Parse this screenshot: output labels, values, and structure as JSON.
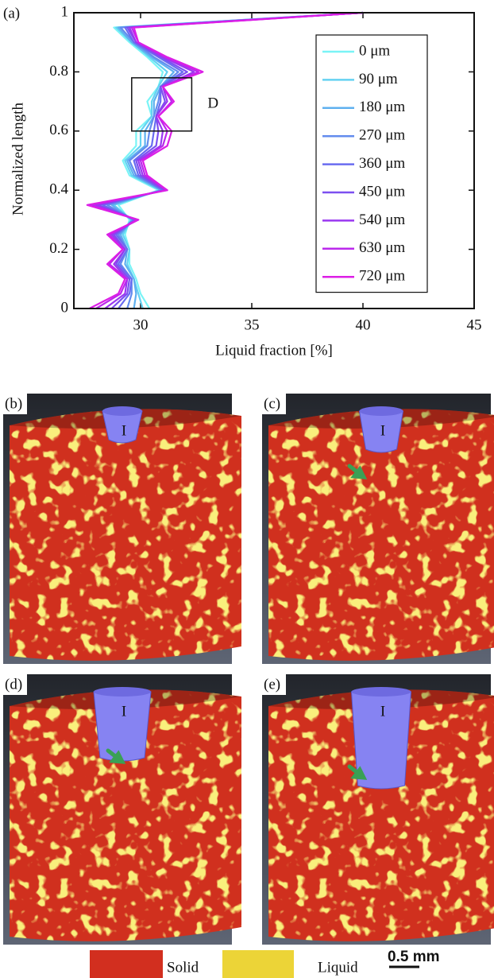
{
  "chart_data": {
    "type": "line",
    "panel_label": "(a)",
    "xlabel": "Liquid fraction [%]",
    "ylabel": "Normalized length",
    "xlim": [
      27,
      45
    ],
    "xticks": [
      30,
      35,
      40,
      45
    ],
    "ylim": [
      0,
      1
    ],
    "yticks": [
      0,
      0.2,
      0.4,
      0.6,
      0.8,
      1
    ],
    "y": [
      0,
      0.05,
      0.1,
      0.15,
      0.2,
      0.25,
      0.3,
      0.35,
      0.4,
      0.45,
      0.5,
      0.55,
      0.6,
      0.65,
      0.7,
      0.75,
      0.8,
      0.85,
      0.9,
      0.95,
      1
    ],
    "legend": "upper right",
    "annotation": {
      "label": "D",
      "x": [
        29.6,
        32.3
      ],
      "y": [
        0.6,
        0.78
      ]
    },
    "series": [
      {
        "name": "0 μm",
        "color": "#7af4f6",
        "values": [
          30.4,
          30.0,
          29.8,
          29.5,
          29.5,
          29.3,
          29.5,
          29.0,
          30.8,
          29.5,
          29.2,
          29.8,
          29.8,
          30.5,
          30.3,
          30.8,
          31.0,
          30.3,
          29.5,
          28.8,
          40.0
        ]
      },
      {
        "name": "90 μm",
        "color": "#64d2f2",
        "values": [
          30.1,
          29.9,
          29.7,
          29.4,
          29.5,
          29.2,
          29.6,
          28.8,
          30.9,
          29.6,
          29.3,
          30.0,
          30.0,
          30.5,
          30.5,
          30.8,
          31.2,
          30.4,
          29.6,
          28.9,
          40.0
        ]
      },
      {
        "name": "180 μm",
        "color": "#5fb0ef",
        "values": [
          29.7,
          29.8,
          29.7,
          29.3,
          29.4,
          29.1,
          29.6,
          28.7,
          30.9,
          29.7,
          29.4,
          30.2,
          30.2,
          30.6,
          30.6,
          30.9,
          31.5,
          30.5,
          29.6,
          29.0,
          40.0
        ]
      },
      {
        "name": "270 μm",
        "color": "#638cee",
        "values": [
          29.4,
          29.6,
          29.6,
          29.1,
          29.4,
          29.0,
          29.7,
          28.5,
          31.0,
          29.8,
          29.5,
          30.3,
          30.4,
          30.6,
          30.8,
          30.9,
          31.7,
          30.6,
          29.7,
          29.1,
          40.0
        ]
      },
      {
        "name": "360 μm",
        "color": "#6a6cf0",
        "values": [
          29.0,
          29.5,
          29.6,
          29.0,
          29.4,
          28.9,
          29.7,
          28.3,
          31.0,
          29.9,
          29.7,
          30.5,
          30.6,
          30.7,
          30.9,
          30.9,
          31.9,
          30.8,
          29.7,
          29.3,
          40.0
        ]
      },
      {
        "name": "450 μm",
        "color": "#7c50f0",
        "values": [
          28.7,
          29.4,
          29.5,
          28.9,
          29.3,
          28.8,
          29.8,
          28.1,
          31.1,
          30.0,
          29.8,
          30.7,
          30.8,
          30.7,
          31.1,
          30.9,
          32.1,
          30.9,
          29.8,
          29.4,
          40.0
        ]
      },
      {
        "name": "540 μm",
        "color": "#9a38f0",
        "values": [
          28.4,
          29.3,
          29.4,
          28.8,
          29.3,
          28.7,
          29.8,
          28.0,
          31.1,
          30.1,
          29.9,
          30.9,
          31.0,
          30.7,
          31.2,
          31.0,
          32.4,
          31.0,
          29.8,
          29.5,
          40.0
        ]
      },
      {
        "name": "630 μm",
        "color": "#bb28ec",
        "values": [
          28.0,
          29.1,
          29.4,
          28.6,
          29.2,
          28.6,
          29.9,
          27.8,
          31.2,
          30.2,
          30.0,
          31.0,
          31.2,
          30.8,
          31.4,
          31.0,
          32.6,
          31.1,
          29.9,
          29.6,
          40.0
        ]
      },
      {
        "name": "720 μm",
        "color": "#dc1ee6",
        "values": [
          27.7,
          29.0,
          29.3,
          28.5,
          29.2,
          28.5,
          29.9,
          27.6,
          31.2,
          30.3,
          30.1,
          31.2,
          31.4,
          30.8,
          31.5,
          31.0,
          32.8,
          31.2,
          29.9,
          29.7,
          40.0
        ]
      }
    ]
  },
  "panels": [
    {
      "label": "(b)",
      "indenter": "I"
    },
    {
      "label": "(c)",
      "indenter": "I"
    },
    {
      "label": "(d)",
      "indenter": "I"
    },
    {
      "label": "(e)",
      "indenter": "I"
    }
  ],
  "phase_legend": {
    "solid": "Solid",
    "liquid": "Liquid",
    "scale_bar": "0.5 mm"
  }
}
